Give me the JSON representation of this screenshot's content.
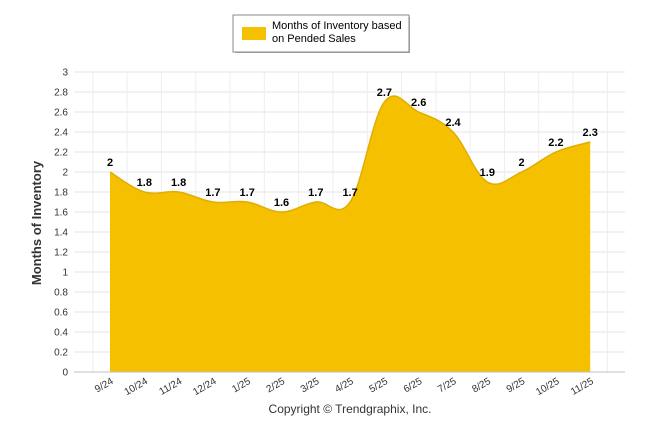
{
  "chart_data": {
    "type": "area",
    "categories": [
      "9/24",
      "10/24",
      "11/24",
      "12/24",
      "1/25",
      "2/25",
      "3/25",
      "4/25",
      "5/25",
      "6/25",
      "7/25",
      "8/25",
      "9/25",
      "10/25",
      "11/25"
    ],
    "series": [
      {
        "name": "Months of Inventory based on Pended Sales",
        "values": [
          2,
          1.8,
          1.8,
          1.7,
          1.7,
          1.6,
          1.7,
          1.7,
          2.7,
          2.6,
          2.4,
          1.9,
          2,
          2.2,
          2.3
        ],
        "color": "#f5c000"
      }
    ],
    "ylabel": "Months of Inventory",
    "ylim": [
      0,
      3
    ],
    "yticks": [
      0,
      0.2,
      0.4,
      0.6,
      0.8,
      1,
      1.2,
      1.4,
      1.6,
      1.8,
      2,
      2.2,
      2.4,
      2.6,
      2.8,
      3
    ],
    "grid": true,
    "legend": {
      "position": "top-center",
      "line1": "Months of Inventory based",
      "line2": "on Pended Sales"
    },
    "credit": "Copyright © Trendgraphix, Inc."
  }
}
